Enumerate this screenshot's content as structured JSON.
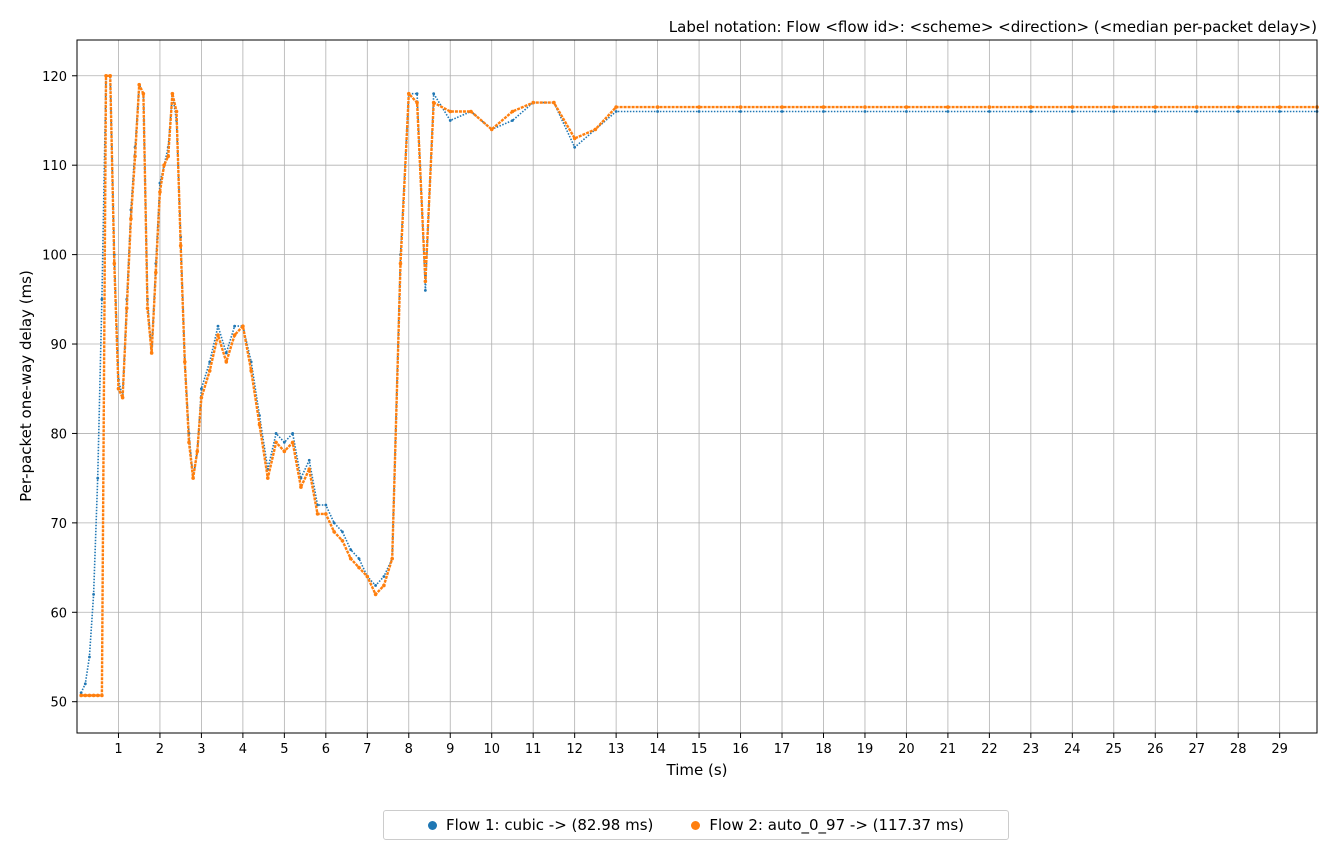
{
  "chart_data": {
    "type": "scatter",
    "title": "Label notation: Flow <flow id>: <scheme> <direction> (<median per-packet delay>)",
    "xlabel": "Time (s)",
    "ylabel": "Per-packet one-way delay (ms)",
    "xlim": [
      0,
      29.9
    ],
    "ylim": [
      46.5,
      124
    ],
    "xticks": [
      1,
      2,
      3,
      4,
      5,
      6,
      7,
      8,
      9,
      10,
      11,
      12,
      13,
      14,
      15,
      16,
      17,
      18,
      19,
      20,
      21,
      22,
      23,
      24,
      25,
      26,
      27,
      28,
      29
    ],
    "yticks": [
      50,
      60,
      70,
      80,
      90,
      100,
      110,
      120
    ],
    "grid": true,
    "legend_position": "bottom-center",
    "series": [
      {
        "name": "Flow 1: cubic -> (82.98 ms)",
        "color": "#1f77b4",
        "x": [
          0.1,
          0.2,
          0.3,
          0.4,
          0.5,
          0.6,
          0.7,
          0.8,
          0.9,
          1.0,
          1.1,
          1.2,
          1.3,
          1.4,
          1.5,
          1.6,
          1.7,
          1.8,
          1.9,
          2.0,
          2.1,
          2.2,
          2.3,
          2.4,
          2.5,
          2.6,
          2.7,
          2.8,
          2.9,
          3.0,
          3.2,
          3.4,
          3.6,
          3.8,
          4.0,
          4.2,
          4.4,
          4.6,
          4.8,
          5.0,
          5.2,
          5.4,
          5.6,
          5.8,
          6.0,
          6.2,
          6.4,
          6.6,
          6.8,
          7.0,
          7.2,
          7.4,
          7.6,
          7.8,
          8.0,
          8.2,
          8.4,
          8.6,
          9.0,
          9.5,
          10.0,
          10.5,
          11.0,
          11.5,
          12.0,
          12.5,
          13,
          14,
          15,
          16,
          17,
          18,
          19,
          20,
          21,
          22,
          23,
          24,
          25,
          26,
          27,
          28,
          29,
          29.9
        ],
        "y": [
          51,
          52,
          55,
          62,
          75,
          95,
          120,
          120,
          100,
          86,
          84,
          95,
          105,
          112,
          119,
          118,
          95,
          89,
          99,
          108,
          110,
          112,
          118,
          115,
          102,
          88,
          80,
          75,
          78,
          85,
          88,
          92,
          89,
          92,
          92,
          88,
          82,
          76,
          80,
          79,
          80,
          75,
          77,
          72,
          72,
          70,
          69,
          67,
          66,
          64,
          63,
          64,
          66,
          100,
          118,
          118,
          96,
          118,
          115,
          116,
          114,
          115,
          117,
          117,
          112,
          114,
          116,
          116,
          116,
          116,
          116,
          116,
          116,
          116,
          116,
          116,
          116,
          116,
          116,
          116,
          116,
          116,
          116,
          116
        ]
      },
      {
        "name": "Flow 2: auto_0_97 -> (117.37 ms)",
        "color": "#ff7f0e",
        "x": [
          0.1,
          0.2,
          0.3,
          0.4,
          0.5,
          0.6,
          0.7,
          0.8,
          0.9,
          1.0,
          1.1,
          1.2,
          1.3,
          1.4,
          1.5,
          1.6,
          1.7,
          1.8,
          1.9,
          2.0,
          2.1,
          2.2,
          2.3,
          2.4,
          2.5,
          2.6,
          2.7,
          2.8,
          2.9,
          3.0,
          3.2,
          3.4,
          3.6,
          3.8,
          4.0,
          4.2,
          4.4,
          4.6,
          4.8,
          5.0,
          5.2,
          5.4,
          5.6,
          5.8,
          6.0,
          6.2,
          6.4,
          6.6,
          6.8,
          7.0,
          7.2,
          7.4,
          7.6,
          7.8,
          8.0,
          8.2,
          8.4,
          8.6,
          9.0,
          9.5,
          10.0,
          10.5,
          11.0,
          11.5,
          12.0,
          12.5,
          13,
          14,
          15,
          16,
          17,
          18,
          19,
          20,
          21,
          22,
          23,
          24,
          25,
          26,
          27,
          28,
          29,
          29.9
        ],
        "y": [
          50.7,
          50.7,
          50.7,
          50.7,
          50.7,
          50.7,
          120,
          120,
          99,
          85,
          84,
          94,
          104,
          111,
          119,
          118,
          94,
          89,
          98,
          107,
          110,
          111,
          118,
          116,
          101,
          88,
          79,
          75,
          78,
          84,
          87,
          91,
          88,
          91,
          92,
          87,
          81,
          75,
          79,
          78,
          79,
          74,
          76,
          71,
          71,
          69,
          68,
          66,
          65,
          64,
          62,
          63,
          66,
          99,
          118,
          117,
          97,
          117,
          116,
          116,
          114,
          116,
          117,
          117,
          113,
          114,
          116.5,
          116.5,
          116.5,
          116.5,
          116.5,
          116.5,
          116.5,
          116.5,
          116.5,
          116.5,
          116.5,
          116.5,
          116.5,
          116.5,
          116.5,
          116.5,
          116.5,
          116.5
        ]
      }
    ]
  }
}
